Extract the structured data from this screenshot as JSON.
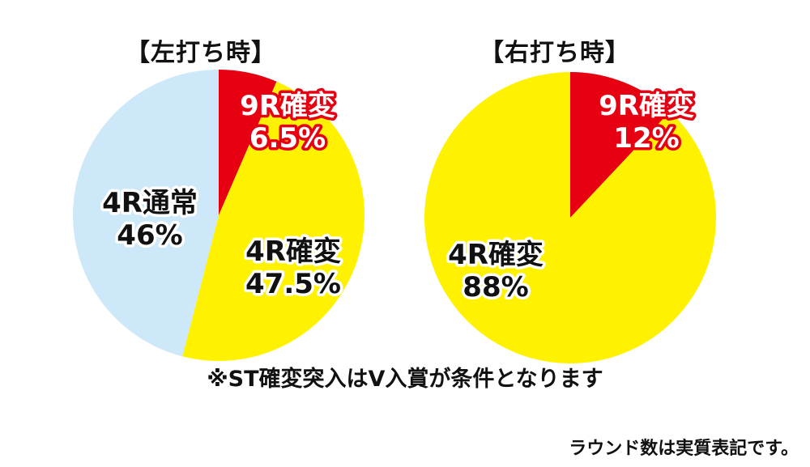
{
  "chart_data": [
    {
      "type": "pie",
      "title": "【左打ち時】",
      "slices": [
        {
          "line1": "9R確変",
          "line2": "6.5%",
          "value": 6.5,
          "color": "#e60012"
        },
        {
          "line1": "4R確変",
          "line2": "47.5%",
          "value": 47.5,
          "color": "#fff200"
        },
        {
          "line1": "4R通常",
          "line2": "46%",
          "value": 46,
          "color": "#cde8f8"
        }
      ]
    },
    {
      "type": "pie",
      "title": "【右打ち時】",
      "slices": [
        {
          "line1": "9R確変",
          "line2": "12%",
          "value": 12,
          "color": "#e60012"
        },
        {
          "line1": "4R確変",
          "line2": "88%",
          "value": 88,
          "color": "#fff200"
        }
      ]
    }
  ],
  "notes": {
    "condition": "※ST確変突入はV入賞が条件となります",
    "rounds": "ラウンド数は実質表記です。"
  }
}
